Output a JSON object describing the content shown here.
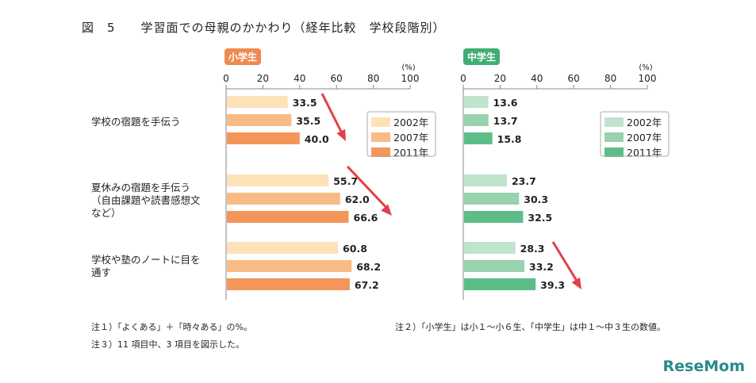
{
  "title": "図　5　　学習面での母親のかかわり（経年比較　学校段階別）",
  "chart_data": [
    {
      "type": "bar",
      "panel": "小学生",
      "unit": "(%)",
      "xlim": [
        0,
        100
      ],
      "ticks": [
        0,
        20,
        40,
        60,
        80,
        100
      ],
      "categories": [
        "学校の宿題を手伝う",
        "夏休みの宿題を手伝う\n（自由課題や読書感想文\nなど）",
        "学校や塾のノートに目を\n通す"
      ],
      "series": [
        {
          "name": "2002年",
          "values": [
            33.5,
            55.7,
            60.8
          ],
          "color": "#fde2b8"
        },
        {
          "name": "2007年",
          "values": [
            35.5,
            62.0,
            68.2
          ],
          "color": "#f9bb86"
        },
        {
          "name": "2011年",
          "values": [
            40.0,
            66.6,
            67.2
          ],
          "color": "#f4955a"
        }
      ],
      "badge_color": "#ef8a4e",
      "legend": "right"
    },
    {
      "type": "bar",
      "panel": "中学生",
      "unit": "(%)",
      "xlim": [
        0,
        100
      ],
      "ticks": [
        0,
        20,
        40,
        60,
        80,
        100
      ],
      "categories": [
        "学校の宿題を手伝う",
        "夏休みの宿題を手伝う\n（自由課題や読書感想文\nなど）",
        "学校や塾のノートに目を\n通す"
      ],
      "series": [
        {
          "name": "2002年",
          "values": [
            13.6,
            23.7,
            28.3
          ],
          "color": "#bfe3cc"
        },
        {
          "name": "2007年",
          "values": [
            13.7,
            30.3,
            33.2
          ],
          "color": "#98d2ae"
        },
        {
          "name": "2011年",
          "values": [
            15.8,
            32.5,
            39.3
          ],
          "color": "#5dbd88"
        }
      ],
      "badge_color": "#3fae73",
      "legend": "right"
    }
  ],
  "notes": [
    "注１）「よくある」＋「時々ある」の%。",
    "注３）11 項目中、3 項目を図示した。",
    "注２）「小学生」は小１～小６生、「中学生」は中１～中３生の数値。"
  ],
  "logo": "ReseMom",
  "arrow_color": "#e0404a"
}
